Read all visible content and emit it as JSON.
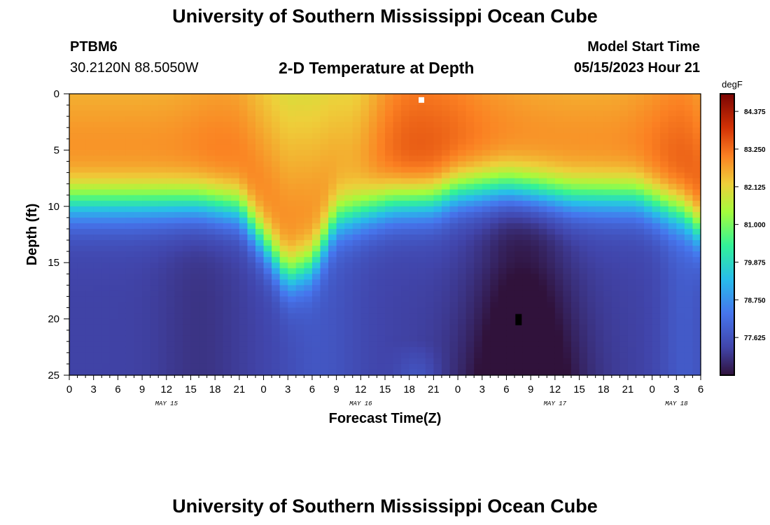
{
  "header": {
    "title": "University of Southern Mississippi Ocean Cube",
    "station_id": "PTBM6",
    "coordinates": "30.2120N  88.5050W",
    "subtitle": "2-D Temperature at Depth",
    "model_start_label": "Model Start Time",
    "model_start_value": "05/15/2023 Hour 21"
  },
  "footer": {
    "title": "University of Southern Mississippi Ocean Cube"
  },
  "colors": {
    "cold": "#2b1544",
    "warm": "#7a0d05"
  },
  "chart_data": {
    "type": "heatmap",
    "title": "2-D Temperature at Depth",
    "xlabel": "Forecast Time(Z)",
    "ylabel": "Depth (ft)",
    "x_tick_labels": [
      "0",
      "3",
      "6",
      "9",
      "12",
      "15",
      "18",
      "21",
      "0",
      "3",
      "6",
      "9",
      "12",
      "15",
      "18",
      "21",
      "0",
      "3",
      "6",
      "9",
      "12",
      "15",
      "18",
      "21",
      "0",
      "3",
      "6"
    ],
    "x_range_hours": [
      0,
      78
    ],
    "date_labels": [
      {
        "label": "MAY 15",
        "hour": 12
      },
      {
        "label": "MAY 16",
        "hour": 36
      },
      {
        "label": "MAY 17",
        "hour": 60
      },
      {
        "label": "MAY 18",
        "hour": 75
      }
    ],
    "y_tick_labels": [
      "0",
      "5",
      "10",
      "15",
      "20",
      "25"
    ],
    "y_range": [
      0,
      25
    ],
    "colorbar": {
      "unit": "degF",
      "labels": [
        "84.375",
        "83.250",
        "82.125",
        "81.000",
        "79.875",
        "78.750",
        "77.625"
      ],
      "label_values": [
        84.375,
        83.25,
        82.125,
        81.0,
        79.875,
        78.75,
        77.625
      ],
      "range": [
        76.5,
        84.9
      ]
    },
    "mixed_layer_depth_ft": [
      {
        "hour": 0,
        "depth": 9.5
      },
      {
        "hour": 16,
        "depth": 9.5
      },
      {
        "hour": 21,
        "depth": 10
      },
      {
        "hour": 24,
        "depth": 13
      },
      {
        "hour": 27,
        "depth": 16
      },
      {
        "hour": 30,
        "depth": 15
      },
      {
        "hour": 33,
        "depth": 11
      },
      {
        "hour": 40,
        "depth": 9.5
      },
      {
        "hour": 45,
        "depth": 9.3
      },
      {
        "hour": 48,
        "depth": 8.5
      },
      {
        "hour": 54,
        "depth": 8.2
      },
      {
        "hour": 62,
        "depth": 9
      },
      {
        "hour": 70,
        "depth": 9
      },
      {
        "hour": 76,
        "depth": 10.5
      },
      {
        "hour": 78,
        "depth": 12
      }
    ],
    "warm_core_hours": [
      19,
      43
    ],
    "cold_core": {
      "hour": 56,
      "depth": 21
    },
    "markers": [
      {
        "hour": 43.5,
        "depth": 0.3,
        "color": "white"
      },
      {
        "hour": 55.5,
        "depth": 20,
        "color": "black"
      }
    ]
  }
}
